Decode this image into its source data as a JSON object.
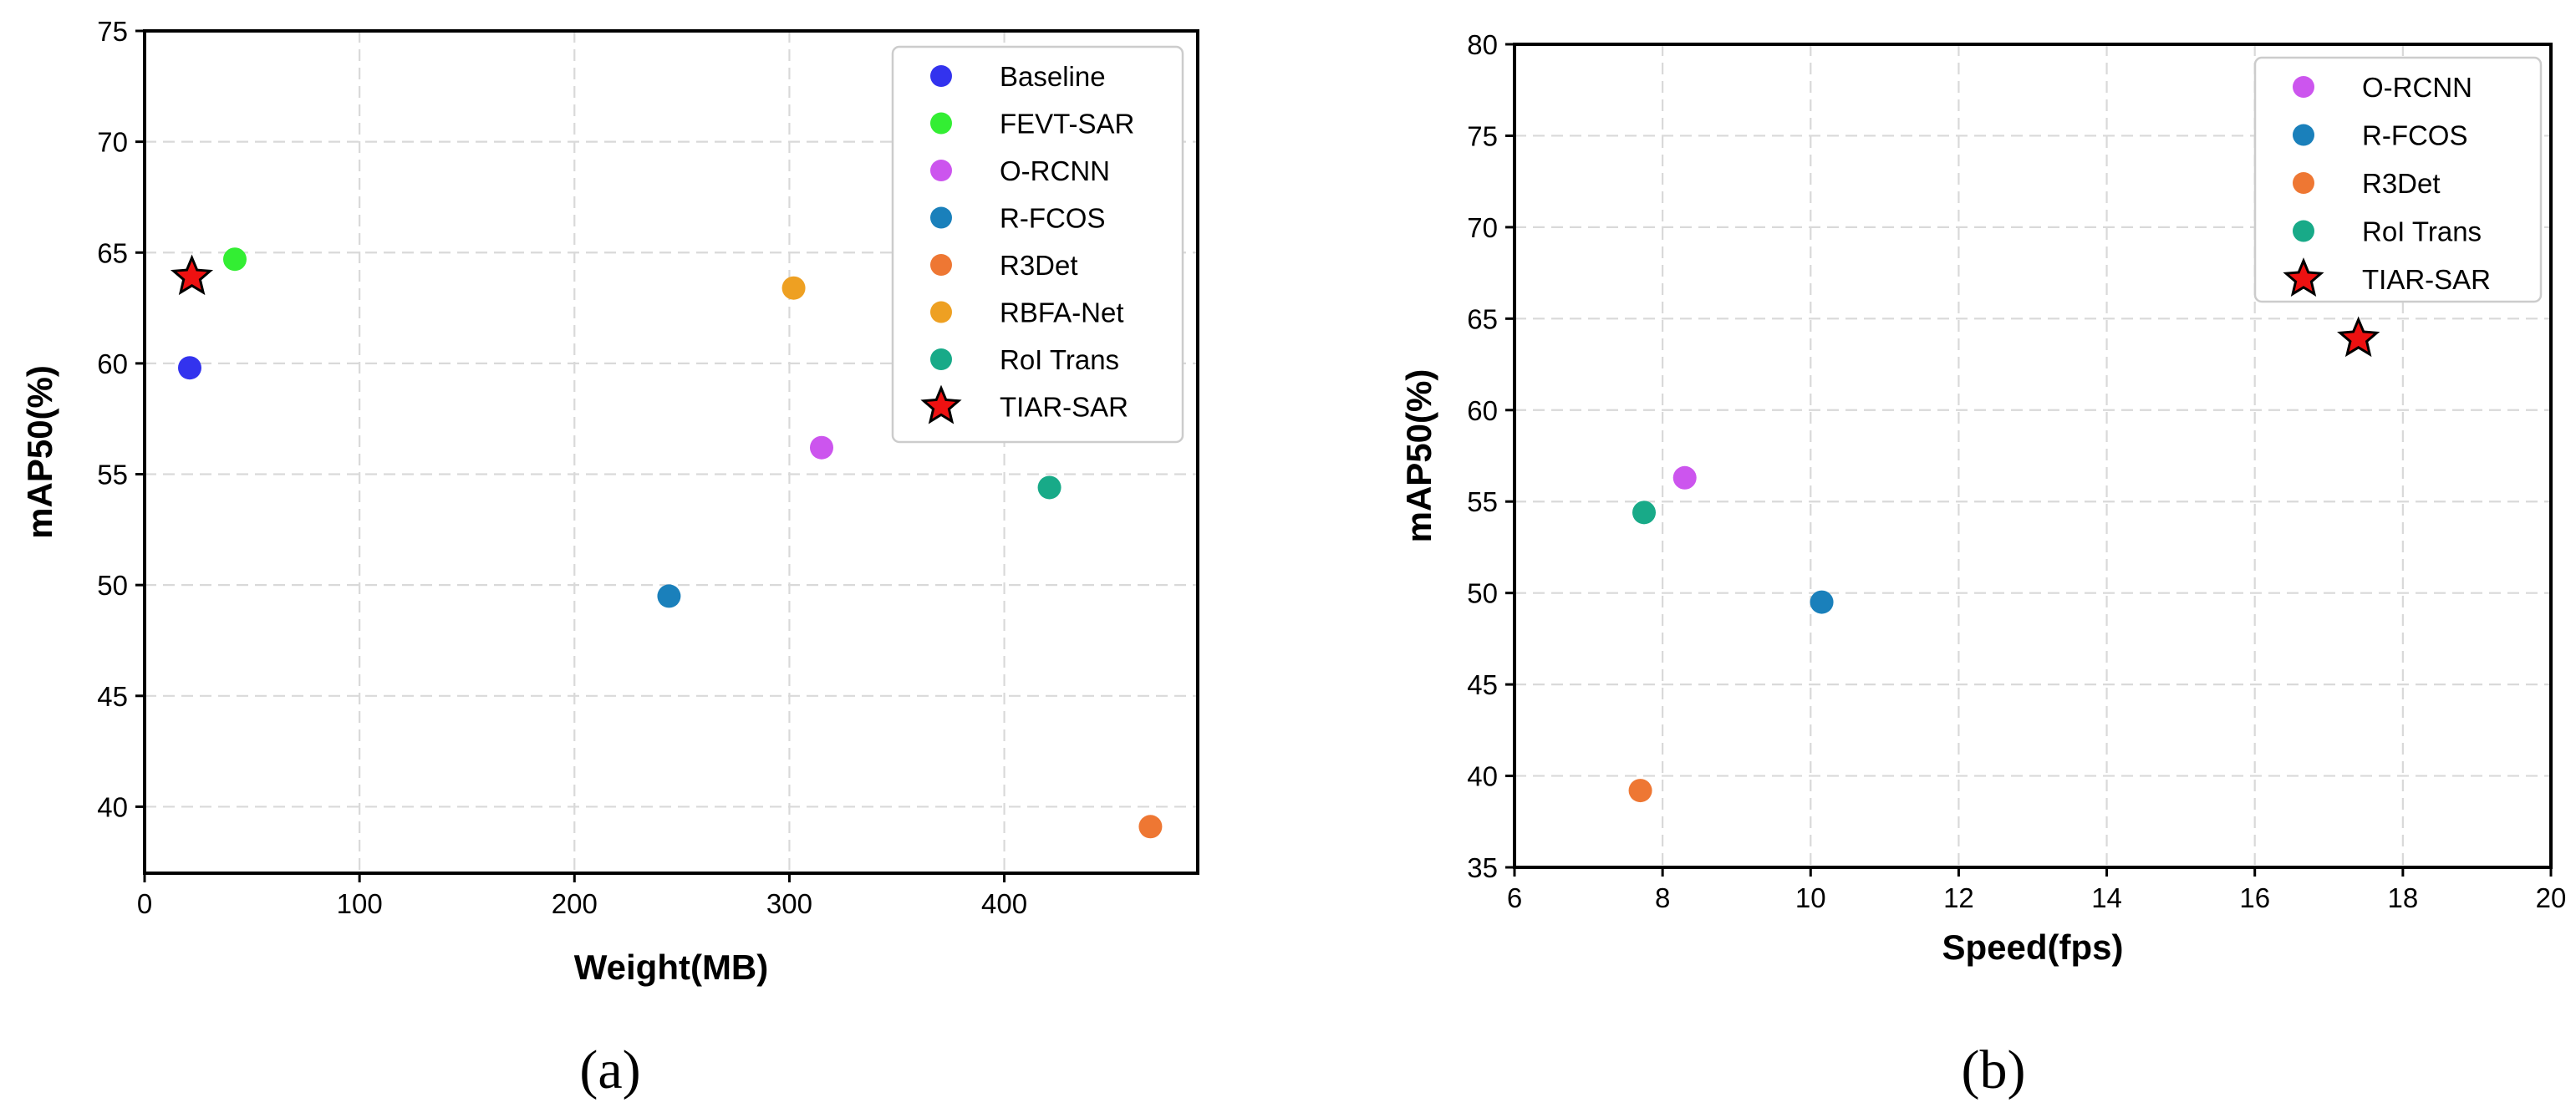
{
  "chart_data": [
    {
      "type": "scatter",
      "panel_label": "(a)",
      "xlabel": "Weight(MB)",
      "ylabel": "mAP50(%)",
      "xlim": [
        0,
        490
      ],
      "ylim": [
        37,
        75
      ],
      "xticks": [
        0,
        100,
        200,
        300,
        400
      ],
      "yticks": [
        40,
        45,
        50,
        55,
        60,
        65,
        70,
        75
      ],
      "grid": true,
      "legend_position": "top-right",
      "series": [
        {
          "name": "Baseline",
          "color": "#3333ee",
          "marker": "circle",
          "x": 21,
          "y": 59.8
        },
        {
          "name": "FEVT-SAR",
          "color": "#33ee33",
          "marker": "circle",
          "x": 42,
          "y": 64.7
        },
        {
          "name": "O-RCNN",
          "color": "#cc55ee",
          "marker": "circle",
          "x": 315,
          "y": 56.2
        },
        {
          "name": "R-FCOS",
          "color": "#1a80bb",
          "marker": "circle",
          "x": 244,
          "y": 49.5
        },
        {
          "name": "R3Det",
          "color": "#ee7733",
          "marker": "circle",
          "x": 468,
          "y": 39.1
        },
        {
          "name": "RBFA-Net",
          "color": "#eea022",
          "marker": "circle",
          "x": 302,
          "y": 63.4
        },
        {
          "name": "RoI Trans",
          "color": "#18aa88",
          "marker": "circle",
          "x": 421,
          "y": 54.4
        },
        {
          "name": "TIAR-SAR",
          "color": "#ee1111",
          "marker": "star",
          "x": 22,
          "y": 63.9
        }
      ]
    },
    {
      "type": "scatter",
      "panel_label": "(b)",
      "xlabel": "Speed(fps)",
      "ylabel": "mAP50(%)",
      "xlim": [
        6,
        20
      ],
      "ylim": [
        35,
        80
      ],
      "xticks": [
        6,
        8,
        10,
        12,
        14,
        16,
        18,
        20
      ],
      "yticks": [
        35,
        40,
        45,
        50,
        55,
        60,
        65,
        70,
        75,
        80
      ],
      "grid": true,
      "legend_position": "top-right",
      "series": [
        {
          "name": "O-RCNN",
          "color": "#cc55ee",
          "marker": "circle",
          "x": 8.3,
          "y": 56.3
        },
        {
          "name": "R-FCOS",
          "color": "#1a80bb",
          "marker": "circle",
          "x": 10.15,
          "y": 49.5
        },
        {
          "name": "R3Det",
          "color": "#ee7733",
          "marker": "circle",
          "x": 7.7,
          "y": 39.2
        },
        {
          "name": "RoI Trans",
          "color": "#18aa88",
          "marker": "circle",
          "x": 7.75,
          "y": 54.4
        },
        {
          "name": "TIAR-SAR",
          "color": "#ee1111",
          "marker": "star",
          "x": 17.4,
          "y": 63.9
        }
      ]
    }
  ]
}
